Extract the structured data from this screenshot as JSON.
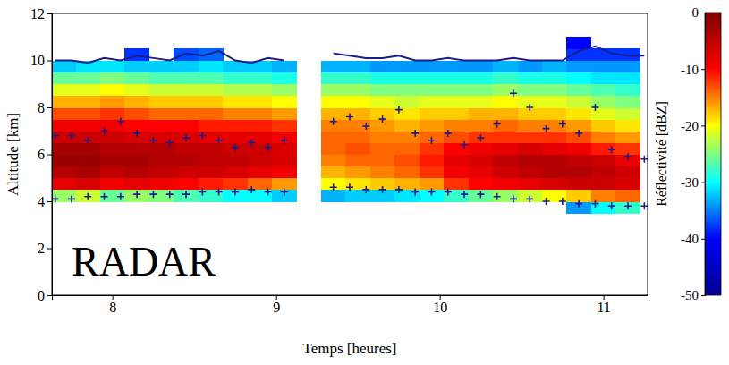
{
  "chart_data": {
    "type": "heatmap",
    "x_label": "Temps [heures]",
    "y_label": "Altitude [km]",
    "annotation": "RADAR",
    "xlim": [
      7.63,
      11.27
    ],
    "ylim": [
      0,
      12
    ],
    "xticks": [
      8,
      9,
      10,
      11
    ],
    "yticks": [
      0,
      2,
      4,
      6,
      8,
      10,
      12
    ],
    "grid": false,
    "colorbar": {
      "label": "Réflectivité [dBZ]",
      "range": [
        -50,
        0
      ],
      "ticks": [
        -50,
        -40,
        -30,
        -20,
        -10,
        0
      ]
    },
    "cells": {
      "x": [
        7.7,
        7.85,
        8.0,
        8.15,
        8.3,
        8.45,
        8.6,
        8.75,
        8.9,
        9.05,
        9.2,
        9.35,
        9.5,
        9.65,
        9.8,
        9.95,
        10.1,
        10.25,
        10.4,
        10.55,
        10.7,
        10.85,
        11.0,
        11.15
      ],
      "y": [
        3.75,
        4.25,
        4.75,
        5.25,
        5.75,
        6.25,
        6.75,
        7.25,
        7.75,
        8.25,
        8.75,
        9.25,
        9.75,
        10.25,
        10.75
      ],
      "z": [
        [
          null,
          null,
          null,
          null,
          null,
          null,
          null,
          null,
          null,
          null,
          null,
          null,
          null,
          null,
          null,
          null,
          null,
          null,
          null,
          null,
          null,
          -34,
          -30,
          -28
        ],
        [
          -24,
          -22,
          -26,
          -24,
          -25,
          -27,
          -28,
          -30,
          -30,
          -32,
          null,
          -33,
          -32,
          -32,
          -31,
          -30,
          -28,
          -26,
          -24,
          -22,
          -20,
          -18,
          -15,
          -14
        ],
        [
          -8,
          -7,
          -9,
          -8,
          -9,
          -10,
          -11,
          -12,
          -14,
          -16,
          null,
          -20,
          -19,
          -18,
          -17,
          -16,
          -12,
          -10,
          -9,
          -8,
          -7,
          -6,
          -6,
          -7
        ],
        [
          -4,
          -3,
          -5,
          -4,
          -5,
          -6,
          -6,
          -7,
          -8,
          -9,
          null,
          -17,
          -16,
          -15,
          -14,
          -12,
          -9,
          -8,
          -6,
          -5,
          -4,
          -4,
          -5,
          -6
        ],
        [
          -2,
          -2,
          -3,
          -3,
          -4,
          -4,
          -5,
          -5,
          -6,
          -7,
          null,
          -15,
          -14,
          -14,
          -13,
          -11,
          -8,
          -7,
          -5,
          -4,
          -4,
          -5,
          -6,
          -8
        ],
        [
          -3,
          -3,
          -4,
          -4,
          -4,
          -5,
          -5,
          -6,
          -6,
          -7,
          null,
          -14,
          -13,
          -14,
          -14,
          -12,
          -10,
          -9,
          -8,
          -7,
          -8,
          -9,
          -11,
          -12
        ],
        [
          -6,
          -6,
          -6,
          -7,
          -7,
          -7,
          -8,
          -8,
          -8,
          -9,
          null,
          -14,
          -14,
          -15,
          -15,
          -14,
          -13,
          -12,
          -12,
          -12,
          -12,
          -13,
          -15,
          -16
        ],
        [
          -9,
          -9,
          -9,
          -10,
          -10,
          -10,
          -11,
          -11,
          -11,
          -12,
          null,
          -15,
          -15,
          -16,
          -17,
          -16,
          -15,
          -15,
          -14,
          -15,
          -15,
          -16,
          -18,
          -19
        ],
        [
          -13,
          -13,
          -12,
          -13,
          -14,
          -14,
          -14,
          -15,
          -15,
          -16,
          null,
          -17,
          -17,
          -18,
          -19,
          -18,
          -18,
          -17,
          -17,
          -18,
          -18,
          -19,
          -21,
          -22
        ],
        [
          -17,
          -17,
          -16,
          -17,
          -18,
          -18,
          -18,
          -19,
          -19,
          -20,
          null,
          -20,
          -20,
          -21,
          -22,
          -21,
          -21,
          -21,
          -20,
          -21,
          -21,
          -22,
          -24,
          -25
        ],
        [
          -21,
          -21,
          -20,
          -21,
          -22,
          -22,
          -22,
          -23,
          -23,
          -24,
          null,
          -24,
          -24,
          -25,
          -25,
          -25,
          -25,
          -25,
          -24,
          -25,
          -25,
          -26,
          -27,
          -28
        ],
        [
          -26,
          -26,
          -25,
          -26,
          -27,
          -27,
          -27,
          -28,
          -28,
          -29,
          null,
          -28,
          -28,
          -29,
          -29,
          -29,
          -29,
          -29,
          -28,
          -29,
          -29,
          -30,
          -31,
          -31
        ],
        [
          -32,
          -31,
          -31,
          -32,
          -32,
          -32,
          -31,
          -32,
          -32,
          -33,
          null,
          -33,
          -33,
          -34,
          -34,
          -34,
          -34,
          -34,
          -33,
          -34,
          -33,
          -34,
          -34,
          -34
        ],
        [
          null,
          null,
          null,
          -38,
          null,
          -37,
          -36,
          null,
          null,
          null,
          null,
          null,
          null,
          null,
          null,
          null,
          null,
          null,
          null,
          null,
          null,
          -38,
          -38,
          -38
        ],
        [
          null,
          null,
          null,
          null,
          null,
          null,
          null,
          null,
          null,
          null,
          null,
          null,
          null,
          null,
          null,
          null,
          null,
          null,
          null,
          null,
          null,
          -40,
          null,
          null
        ]
      ]
    },
    "x": [
      7.65,
      7.75,
      7.85,
      7.95,
      8.05,
      8.15,
      8.25,
      8.35,
      8.45,
      8.55,
      8.65,
      8.75,
      8.85,
      8.95,
      9.05,
      9.15,
      9.25,
      9.35,
      9.45,
      9.55,
      9.65,
      9.75,
      9.85,
      9.95,
      10.05,
      10.15,
      10.25,
      10.35,
      10.45,
      10.55,
      10.65,
      10.75,
      10.85,
      10.95,
      11.05,
      11.15,
      11.25
    ],
    "series": [
      {
        "type": "line",
        "marker": "none",
        "line_style": "solid",
        "color": "#1c1c8a",
        "values": [
          10.0,
          10.0,
          9.9,
          10.1,
          10.0,
          10.2,
          10.1,
          10.0,
          10.3,
          10.2,
          10.4,
          10.0,
          9.9,
          10.1,
          10.0,
          null,
          null,
          10.3,
          10.2,
          10.1,
          10.1,
          10.2,
          10.0,
          10.0,
          10.1,
          10.0,
          10.0,
          10.0,
          10.1,
          10.0,
          10.0,
          10.0,
          10.4,
          10.6,
          10.3,
          10.2,
          10.2
        ]
      },
      {
        "type": "scatter",
        "marker": "plus",
        "color": "#1c1c8a",
        "values": [
          6.8,
          6.8,
          6.6,
          7.0,
          7.4,
          6.9,
          6.6,
          6.5,
          6.7,
          6.8,
          6.6,
          6.3,
          6.5,
          6.3,
          6.6,
          null,
          null,
          7.4,
          7.6,
          7.2,
          7.5,
          7.9,
          6.9,
          6.6,
          6.9,
          6.4,
          6.7,
          7.3,
          8.6,
          8.0,
          7.1,
          7.3,
          6.9,
          8.0,
          6.2,
          5.9,
          5.8
        ]
      },
      {
        "type": "scatter",
        "marker": "plus",
        "color": "#1c1c8a",
        "values": [
          4.1,
          4.1,
          4.2,
          4.2,
          4.2,
          4.3,
          4.3,
          4.3,
          4.3,
          4.4,
          4.4,
          4.4,
          4.5,
          4.4,
          4.4,
          null,
          null,
          4.6,
          4.6,
          4.5,
          4.5,
          4.5,
          4.4,
          4.4,
          4.4,
          4.3,
          4.3,
          4.2,
          4.1,
          4.1,
          4.0,
          4.0,
          3.9,
          3.9,
          3.8,
          3.8,
          3.8
        ]
      }
    ]
  }
}
